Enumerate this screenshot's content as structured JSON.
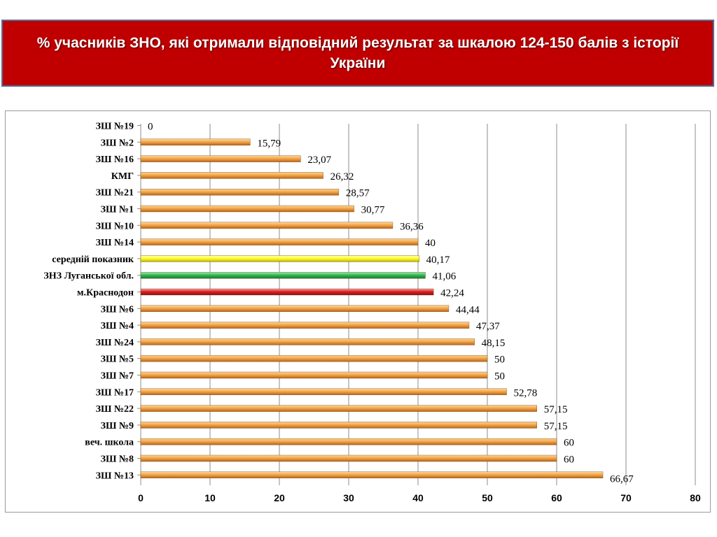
{
  "header": {
    "title": "% учасників ЗНО, які отримали відповідний результат за шкалою 124-150 балів з історії України"
  },
  "colors": {
    "banner": "#c00000",
    "default_bar": "#f0a040",
    "average_bar": "#ffff33",
    "region_bar": "#33bb55",
    "city_bar": "#dd2222"
  },
  "chart_data": {
    "type": "bar",
    "orientation": "horizontal",
    "categories": [
      "ЗШ №19",
      "ЗШ №2",
      "ЗШ №16",
      "КМГ",
      "ЗШ №21",
      "ЗШ №1",
      "ЗШ №10",
      "ЗШ №14",
      "середній показник",
      "ЗНЗ Луганської обл.",
      "м.Краснодон",
      "ЗШ №6",
      "ЗШ №4",
      "ЗШ №24",
      "ЗШ №5",
      "ЗШ №7",
      "ЗШ №17",
      "ЗШ №22",
      "ЗШ №9",
      "веч. школа",
      "ЗШ №8",
      "ЗШ №13"
    ],
    "values": [
      0,
      15.79,
      23.07,
      26.32,
      28.57,
      30.77,
      36.36,
      40,
      40.17,
      41.06,
      42.24,
      44.44,
      47.37,
      48.15,
      50,
      50,
      52.78,
      57.15,
      57.15,
      60,
      60,
      66.67
    ],
    "value_labels": [
      "0",
      "15,79",
      "23,07",
      "26,32",
      "28,57",
      "30,77",
      "36,36",
      "40",
      "40,17",
      "41,06",
      "42,24",
      "44,44",
      "47,37",
      "48,15",
      "50",
      "50",
      "52,78",
      "57,15",
      "57,15",
      "60",
      "60",
      "66,67"
    ],
    "bar_colors": [
      "#f0a040",
      "#f0a040",
      "#f0a040",
      "#f0a040",
      "#f0a040",
      "#f0a040",
      "#f0a040",
      "#f0a040",
      "#ffff33",
      "#33bb55",
      "#dd2222",
      "#f0a040",
      "#f0a040",
      "#f0a040",
      "#f0a040",
      "#f0a040",
      "#f0a040",
      "#f0a040",
      "#f0a040",
      "#f0a040",
      "#f0a040",
      "#f0a040"
    ],
    "x_ticks": [
      "0",
      "10",
      "20",
      "30",
      "40",
      "50",
      "60",
      "70",
      "80"
    ],
    "xlim": [
      0,
      80
    ],
    "grid": true,
    "legend": "none"
  }
}
